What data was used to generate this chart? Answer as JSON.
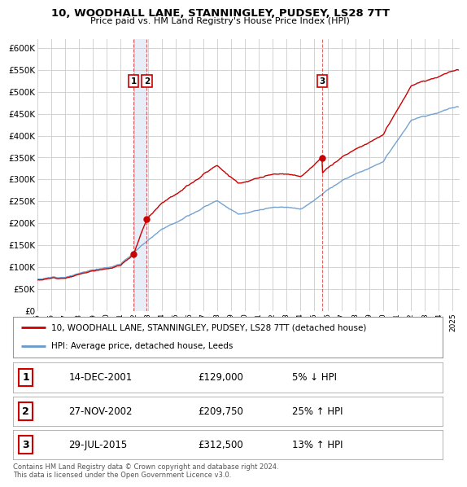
{
  "title": "10, WOODHALL LANE, STANNINGLEY, PUDSEY, LS28 7TT",
  "subtitle": "Price paid vs. HM Land Registry's House Price Index (HPI)",
  "ylabel_ticks": [
    "£0",
    "£50K",
    "£100K",
    "£150K",
    "£200K",
    "£250K",
    "£300K",
    "£350K",
    "£400K",
    "£450K",
    "£500K",
    "£550K",
    "£600K"
  ],
  "ytick_values": [
    0,
    50000,
    100000,
    150000,
    200000,
    250000,
    300000,
    350000,
    400000,
    450000,
    500000,
    550000,
    600000
  ],
  "xlim_start": 1995.0,
  "xlim_end": 2025.5,
  "ylim_min": 0,
  "ylim_max": 620000,
  "sales": [
    {
      "date_num": 2001.95,
      "price": 129000,
      "label": "1"
    },
    {
      "date_num": 2002.9,
      "price": 209750,
      "label": "2"
    },
    {
      "date_num": 2015.56,
      "price": 312500,
      "label": "3"
    }
  ],
  "legend_property_label": "10, WOODHALL LANE, STANNINGLEY, PUDSEY, LS28 7TT (detached house)",
  "legend_hpi_label": "HPI: Average price, detached house, Leeds",
  "table_rows": [
    {
      "num": "1",
      "date": "14-DEC-2001",
      "price": "£129,000",
      "hpi": "5% ↓ HPI"
    },
    {
      "num": "2",
      "date": "27-NOV-2002",
      "price": "£209,750",
      "hpi": "25% ↑ HPI"
    },
    {
      "num": "3",
      "date": "29-JUL-2015",
      "price": "£312,500",
      "hpi": "13% ↑ HPI"
    }
  ],
  "footnote": "Contains HM Land Registry data © Crown copyright and database right 2024.\nThis data is licensed under the Open Government Licence v3.0.",
  "property_color": "#cc0000",
  "hpi_color": "#6699cc",
  "vline_color": "#cc0000",
  "shade_color": "#e8eef8",
  "background_color": "#ffffff",
  "grid_color": "#cccccc"
}
